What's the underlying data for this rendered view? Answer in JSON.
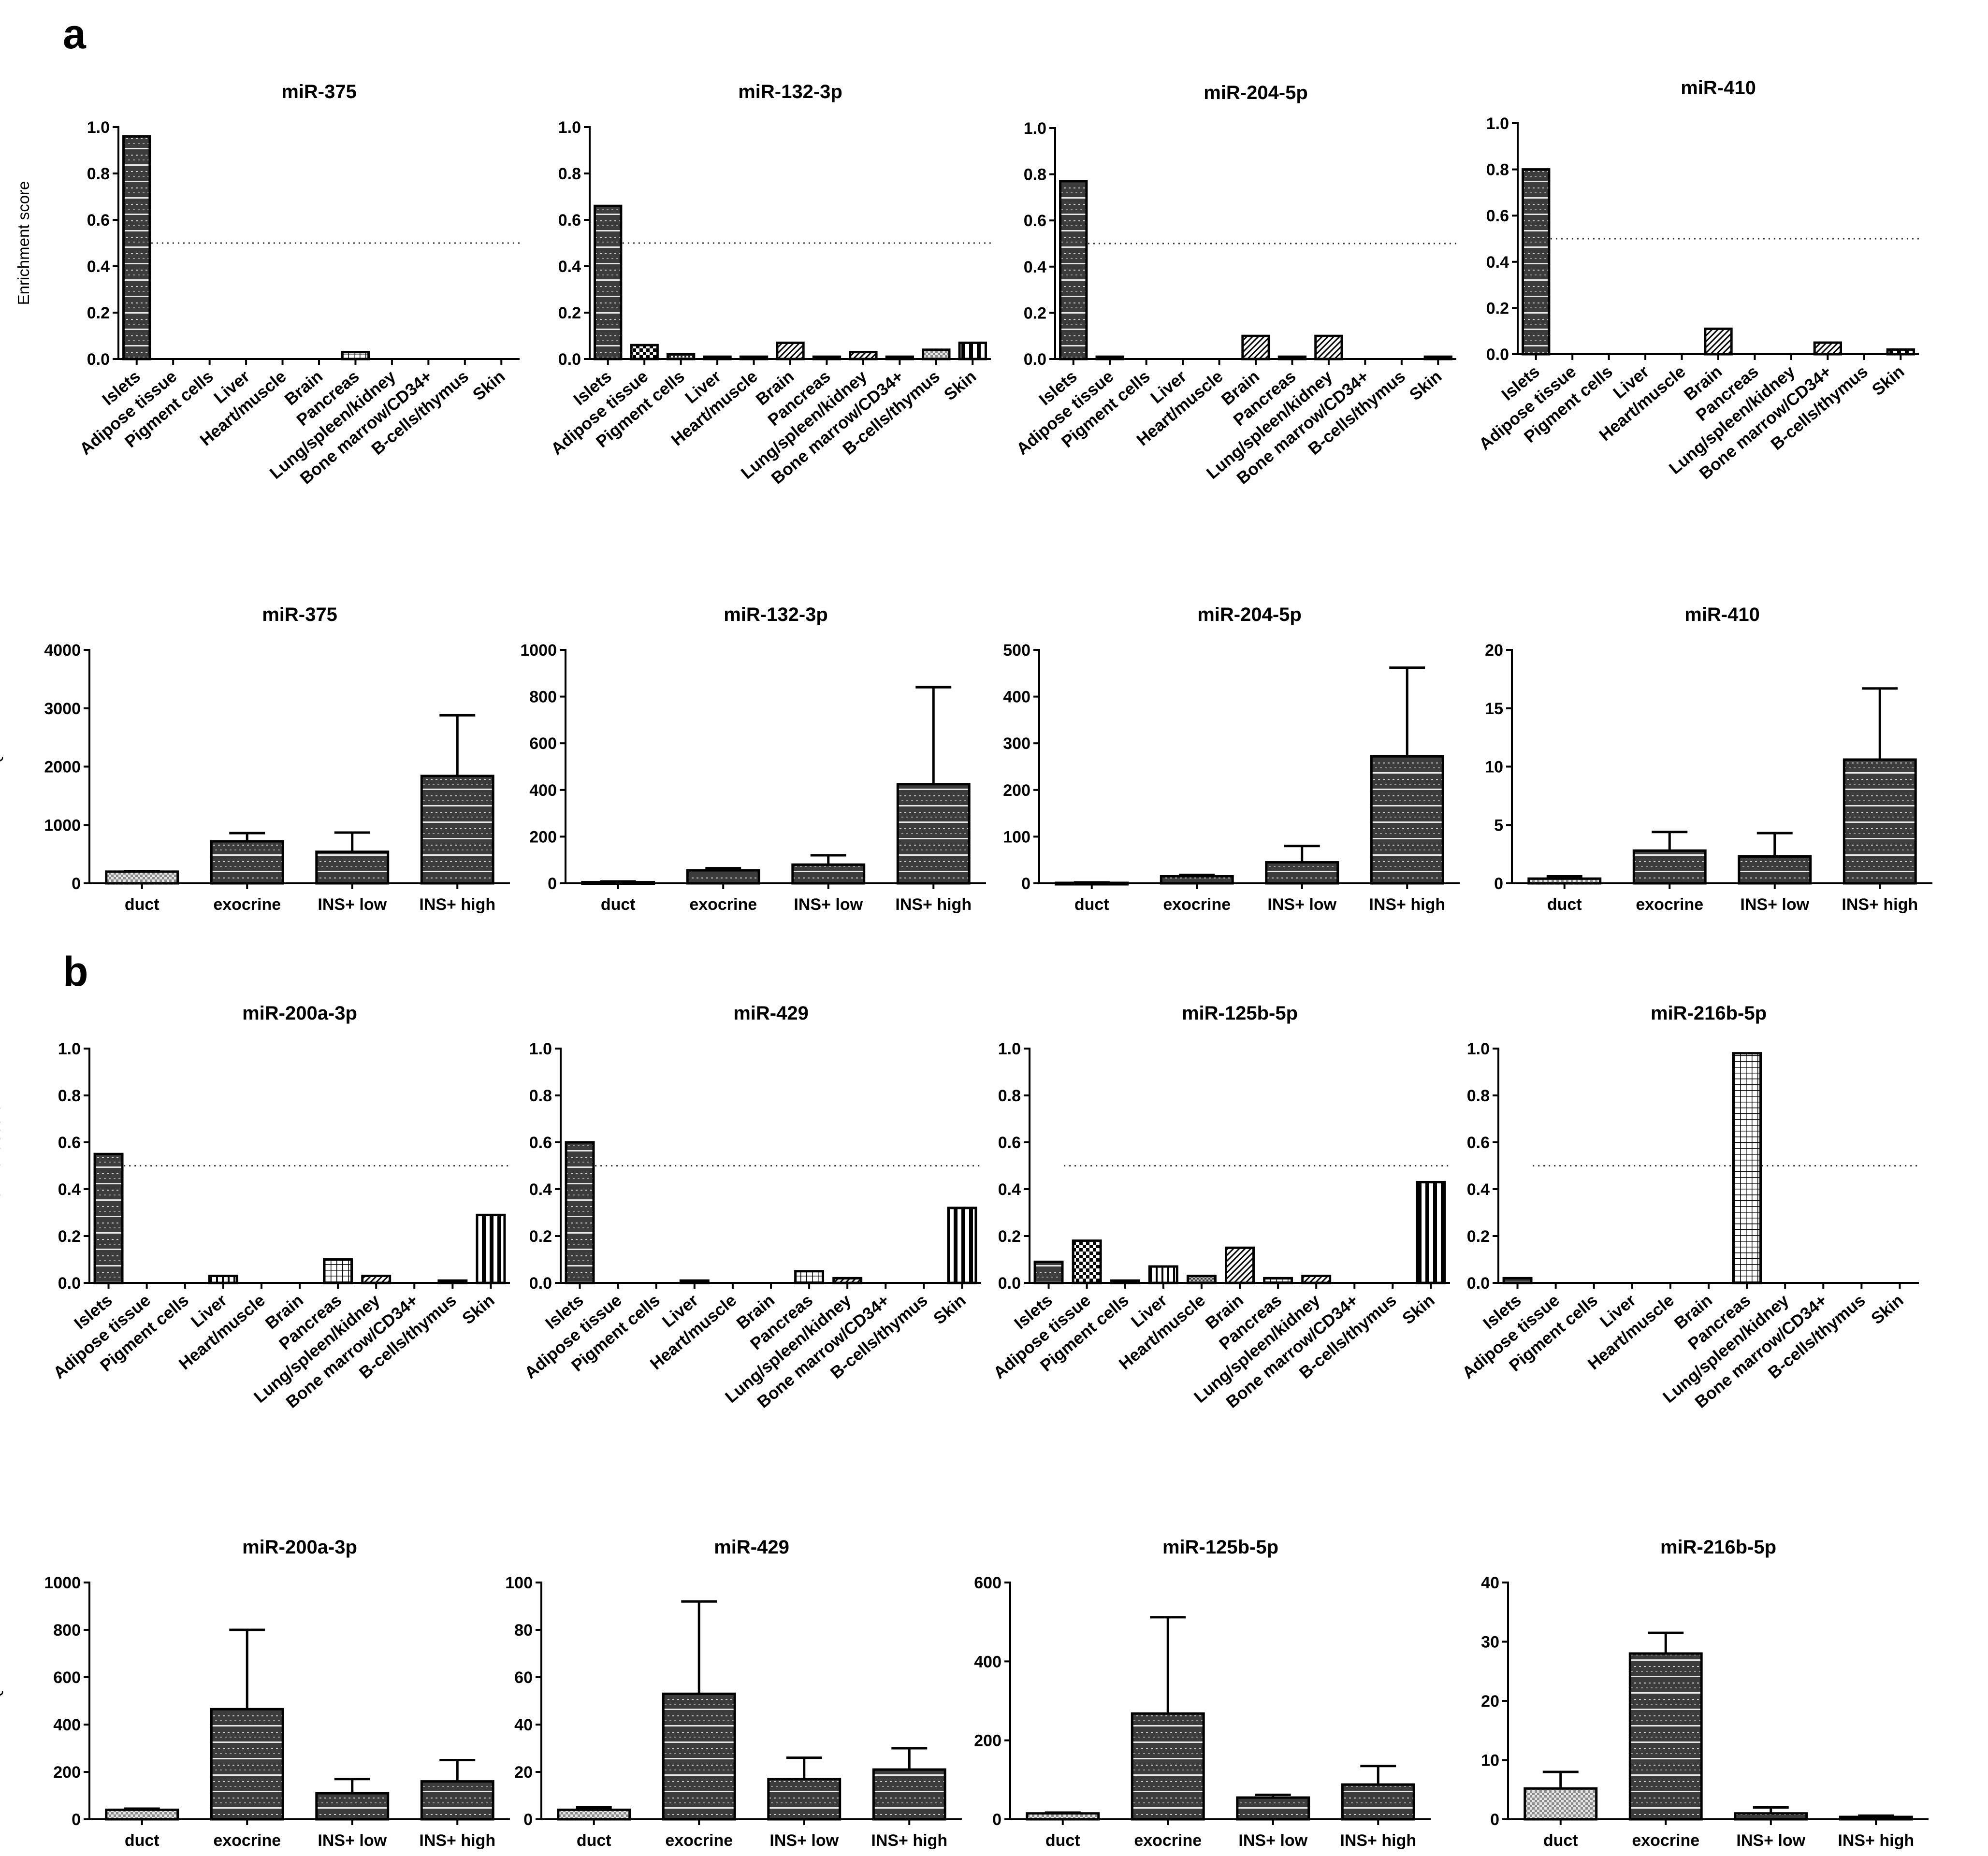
{
  "panels": {
    "a": "a",
    "b": "b"
  },
  "labels": {
    "enrichment": "Enrichment score",
    "rq": "RQ"
  },
  "chart_data": [
    {
      "type": "bar",
      "kind": "enrichment",
      "panel": "a",
      "title": "miR-375",
      "ylabel": "Enrichment score",
      "ylim": [
        0,
        1.0
      ],
      "yticks": [
        "0.0",
        "0.2",
        "0.4",
        "0.6",
        "0.8",
        "1.0"
      ],
      "threshold": 0.5,
      "categories": [
        "Islets",
        "Adipose tissue",
        "Pigment cells",
        "Liver",
        "Heart/muscle",
        "Brain",
        "Pancreas",
        "Lung/spleen/kidney",
        "Bone marrow/CD34+",
        "B-cells/thymus",
        "Skin"
      ],
      "values": [
        0.96,
        0,
        0,
        0,
        0,
        0,
        0.03,
        0,
        0,
        0,
        0
      ]
    },
    {
      "type": "bar",
      "kind": "enrichment",
      "panel": "a",
      "title": "miR-132-3p",
      "ylabel": "",
      "ylim": [
        0,
        1.0
      ],
      "yticks": [
        "0.0",
        "0.2",
        "0.4",
        "0.6",
        "0.8",
        "1.0"
      ],
      "threshold": 0.5,
      "categories": [
        "Islets",
        "Adipose tissue",
        "Pigment cells",
        "Liver",
        "Heart/muscle",
        "Brain",
        "Pancreas",
        "Lung/spleen/kidney",
        "Bone marrow/CD34+",
        "B-cells/thymus",
        "Skin"
      ],
      "values": [
        0.66,
        0.06,
        0.02,
        0.01,
        0.01,
        0.07,
        0.01,
        0.03,
        0.01,
        0.04,
        0.07
      ]
    },
    {
      "type": "bar",
      "kind": "enrichment",
      "panel": "a",
      "title": "miR-204-5p",
      "ylabel": "",
      "ylim": [
        0,
        1.0
      ],
      "yticks": [
        "0.0",
        "0.2",
        "0.4",
        "0.6",
        "0.8",
        "1.0"
      ],
      "threshold": 0.5,
      "categories": [
        "Islets",
        "Adipose tissue",
        "Pigment cells",
        "Liver",
        "Heart/muscle",
        "Brain",
        "Pancreas",
        "Lung/spleen/kidney",
        "Bone marrow/CD34+",
        "B-cells/thymus",
        "Skin"
      ],
      "values": [
        0.77,
        0.01,
        0,
        0,
        0,
        0.1,
        0.01,
        0.1,
        0,
        0,
        0.01
      ]
    },
    {
      "type": "bar",
      "kind": "enrichment",
      "panel": "a",
      "title": "miR-410",
      "ylabel": "",
      "ylim": [
        0,
        1.0
      ],
      "yticks": [
        "0.0",
        "0.2",
        "0.4",
        "0.6",
        "0.8",
        "1.0"
      ],
      "threshold": 0.5,
      "categories": [
        "Islets",
        "Adipose tissue",
        "Pigment cells",
        "Liver",
        "Heart/muscle",
        "Brain",
        "Pancreas",
        "Lung/spleen/kidney",
        "Bone marrow/CD34+",
        "B-cells/thymus",
        "Skin"
      ],
      "values": [
        0.8,
        0,
        0,
        0,
        0,
        0.11,
        0,
        0,
        0.05,
        0,
        0.02
      ]
    },
    {
      "type": "bar",
      "kind": "rq",
      "panel": "a",
      "title": "miR-375",
      "ylabel": "RQ",
      "ylim": [
        0,
        4000
      ],
      "yticks": [
        "0",
        "1000",
        "2000",
        "3000",
        "4000"
      ],
      "categories": [
        "duct",
        "exocrine",
        "INS+ low",
        "INS+ high"
      ],
      "values": [
        200,
        720,
        540,
        1840
      ],
      "errors": [
        210,
        860,
        870,
        2880
      ]
    },
    {
      "type": "bar",
      "kind": "rq",
      "panel": "a",
      "title": "miR-132-3p",
      "ylabel": "",
      "ylim": [
        0,
        1000
      ],
      "yticks": [
        "0",
        "200",
        "400",
        "600",
        "800",
        "1000"
      ],
      "categories": [
        "duct",
        "exocrine",
        "INS+ low",
        "INS+ high"
      ],
      "values": [
        5,
        55,
        80,
        425
      ],
      "errors": [
        8,
        65,
        120,
        840
      ]
    },
    {
      "type": "bar",
      "kind": "rq",
      "panel": "a",
      "title": "miR-204-5p",
      "ylabel": "",
      "ylim": [
        0,
        500
      ],
      "yticks": [
        "0",
        "100",
        "200",
        "300",
        "400",
        "500"
      ],
      "categories": [
        "duct",
        "exocrine",
        "INS+ low",
        "INS+ high"
      ],
      "values": [
        1,
        15,
        45,
        272
      ],
      "errors": [
        2,
        18,
        80,
        462
      ]
    },
    {
      "type": "bar",
      "kind": "rq",
      "panel": "a",
      "title": "miR-410",
      "ylabel": "",
      "ylim": [
        0,
        20
      ],
      "yticks": [
        "0",
        "5",
        "10",
        "15",
        "20"
      ],
      "categories": [
        "duct",
        "exocrine",
        "INS+ low",
        "INS+ high"
      ],
      "values": [
        0.4,
        2.8,
        2.3,
        10.6
      ],
      "errors": [
        0.6,
        4.4,
        4.3,
        16.7
      ]
    },
    {
      "type": "bar",
      "kind": "enrichment",
      "panel": "b",
      "title": "miR-200a-3p",
      "ylabel": "Enrichment score",
      "ylim": [
        0,
        1.0
      ],
      "yticks": [
        "0.0",
        "0.2",
        "0.4",
        "0.6",
        "0.8",
        "1.0"
      ],
      "threshold": 0.5,
      "categories": [
        "Islets",
        "Adipose tissue",
        "Pigment cells",
        "Liver",
        "Heart/muscle",
        "Brain",
        "Pancreas",
        "Lung/spleen/kidney",
        "Bone marrow/CD34+",
        "B-cells/thymus",
        "Skin"
      ],
      "values": [
        0.55,
        0,
        0,
        0.03,
        0,
        0,
        0.1,
        0.03,
        0,
        0.01,
        0.29
      ]
    },
    {
      "type": "bar",
      "kind": "enrichment",
      "panel": "b",
      "title": "miR-429",
      "ylabel": "",
      "ylim": [
        0,
        1.0
      ],
      "yticks": [
        "0.0",
        "0.2",
        "0.4",
        "0.6",
        "0.8",
        "1.0"
      ],
      "threshold": 0.5,
      "categories": [
        "Islets",
        "Adipose tissue",
        "Pigment cells",
        "Liver",
        "Heart/muscle",
        "Brain",
        "Pancreas",
        "Lung/spleen/kidney",
        "Bone marrow/CD34+",
        "B-cells/thymus",
        "Skin"
      ],
      "values": [
        0.6,
        0,
        0,
        0.01,
        0,
        0,
        0.05,
        0.02,
        0,
        0,
        0.32
      ]
    },
    {
      "type": "bar",
      "kind": "enrichment",
      "panel": "b",
      "title": "miR-125b-5p",
      "ylabel": "",
      "ylim": [
        0,
        1.0
      ],
      "yticks": [
        "0.0",
        "0.2",
        "0.4",
        "0.6",
        "0.8",
        "1.0"
      ],
      "threshold": 0.5,
      "categories": [
        "Islets",
        "Adipose tissue",
        "Pigment cells",
        "Liver",
        "Heart/muscle",
        "Brain",
        "Pancreas",
        "Lung/spleen/kidney",
        "Bone marrow/CD34+",
        "B-cells/thymus",
        "Skin"
      ],
      "values": [
        0.09,
        0.18,
        0.01,
        0.07,
        0.03,
        0.15,
        0.02,
        0.03,
        0,
        0,
        0.43
      ]
    },
    {
      "type": "bar",
      "kind": "enrichment",
      "panel": "b",
      "title": "miR-216b-5p",
      "ylabel": "",
      "ylim": [
        0,
        1.0
      ],
      "yticks": [
        "0.0",
        "0.2",
        "0.4",
        "0.6",
        "0.8",
        "1.0"
      ],
      "threshold": 0.5,
      "categories": [
        "Islets",
        "Adipose tissue",
        "Pigment cells",
        "Liver",
        "Heart/muscle",
        "Brain",
        "Pancreas",
        "Lung/spleen/kidney",
        "Bone marrow/CD34+",
        "B-cells/thymus",
        "Skin"
      ],
      "values": [
        0.02,
        0,
        0,
        0,
        0,
        0,
        0.98,
        0,
        0,
        0,
        0
      ]
    },
    {
      "type": "bar",
      "kind": "rq",
      "panel": "b",
      "title": "miR-200a-3p",
      "ylabel": "RQ",
      "ylim": [
        0,
        1000
      ],
      "yticks": [
        "0",
        "200",
        "400",
        "600",
        "800",
        "1000"
      ],
      "categories": [
        "duct",
        "exocrine",
        "INS+ low",
        "INS+ high"
      ],
      "values": [
        40,
        465,
        110,
        160
      ],
      "errors": [
        45,
        800,
        170,
        250
      ]
    },
    {
      "type": "bar",
      "kind": "rq",
      "panel": "b",
      "title": "miR-429",
      "ylabel": "",
      "ylim": [
        0,
        100
      ],
      "yticks": [
        "0",
        "20",
        "40",
        "60",
        "80",
        "100"
      ],
      "categories": [
        "duct",
        "exocrine",
        "INS+ low",
        "INS+ high"
      ],
      "values": [
        4,
        53,
        17,
        21
      ],
      "errors": [
        5,
        92,
        26,
        30
      ]
    },
    {
      "type": "bar",
      "kind": "rq",
      "panel": "b",
      "title": "miR-125b-5p",
      "ylabel": "",
      "ylim": [
        0,
        600
      ],
      "yticks": [
        "0",
        "200",
        "400",
        "600"
      ],
      "categories": [
        "duct",
        "exocrine",
        "INS+ low",
        "INS+ high"
      ],
      "values": [
        15,
        268,
        55,
        88
      ],
      "errors": [
        17,
        512,
        62,
        135
      ]
    },
    {
      "type": "bar",
      "kind": "rq",
      "panel": "b",
      "title": "miR-216b-5p",
      "ylabel": "",
      "ylim": [
        0,
        40
      ],
      "yticks": [
        "0",
        "10",
        "20",
        "30",
        "40"
      ],
      "categories": [
        "duct",
        "exocrine",
        "INS+ low",
        "INS+ high"
      ],
      "values": [
        5.2,
        28,
        1.0,
        0.4
      ],
      "errors": [
        8,
        31.5,
        2.0,
        0.6
      ]
    }
  ]
}
